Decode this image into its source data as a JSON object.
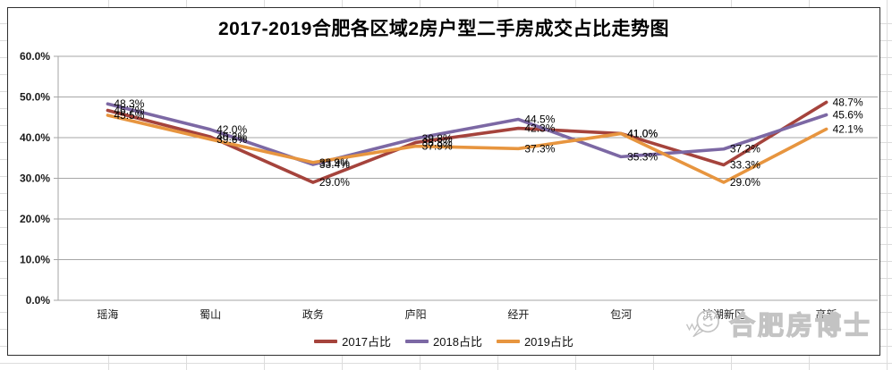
{
  "excel": {
    "grid_color": "#dcdcdc"
  },
  "chart": {
    "title": "2017-2019合肥各区域2房户型二手房成交占比走势图",
    "watermark": {
      "text": "合肥房博士",
      "logo": "speech-bubble-face-logo"
    },
    "chart_data": {
      "type": "line",
      "title": "2017-2019合肥各区域2房户型二手房成交占比走势图",
      "categories": [
        "瑶海",
        "蜀山",
        "政务",
        "庐阳",
        "经开",
        "包河",
        "滨湖新区",
        "高新"
      ],
      "series": [
        {
          "name": "2017占比",
          "color": "#a5433c",
          "values": [
            46.7,
            40.2,
            29.0,
            38.8,
            42.3,
            41.0,
            33.3,
            48.7
          ]
        },
        {
          "name": "2018占比",
          "color": "#7c68a4",
          "values": [
            48.3,
            42.0,
            33.4,
            39.8,
            44.5,
            35.3,
            37.2,
            45.6
          ]
        },
        {
          "name": "2019占比",
          "color": "#e7953f",
          "values": [
            45.5,
            39.6,
            33.9,
            37.9,
            37.3,
            41.0,
            29.0,
            42.1
          ]
        }
      ],
      "xlabel": "",
      "ylabel": "",
      "ylim": [
        0,
        60
      ],
      "ytick_step": 10,
      "ytick_suffix": "%",
      "grid": true,
      "data_labels": true,
      "legend_position": "bottom",
      "axis_color": "#a6a6a6",
      "label_color": "#1a1a1a"
    }
  }
}
